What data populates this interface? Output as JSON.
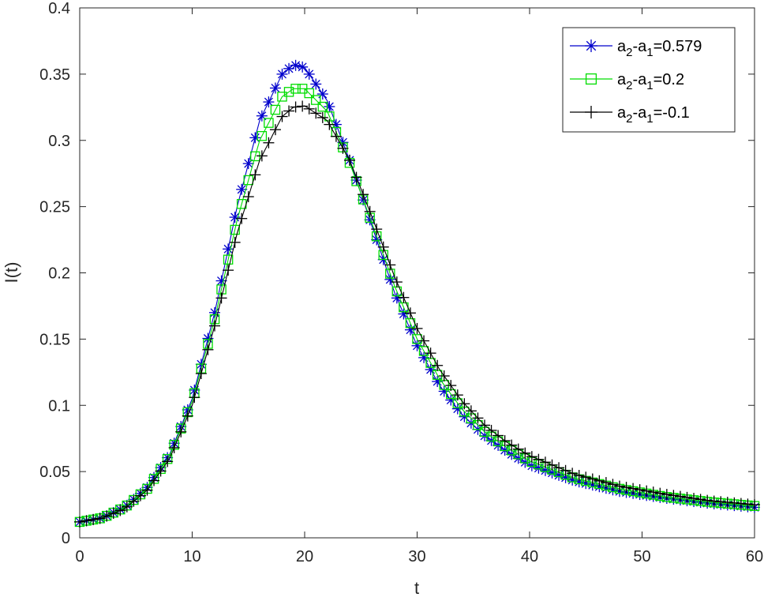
{
  "chart_data": {
    "type": "line",
    "xlabel": "t",
    "ylabel": "I(t)",
    "xlim": [
      0,
      60
    ],
    "ylim": [
      0,
      0.4
    ],
    "xticks": [
      0,
      10,
      20,
      30,
      40,
      50,
      60
    ],
    "xtick_labels": [
      "0",
      "10",
      "20",
      "30",
      "40",
      "50",
      "60"
    ],
    "yticks": [
      0,
      0.05,
      0.1,
      0.15,
      0.2,
      0.25,
      0.3,
      0.35,
      0.4
    ],
    "ytick_labels": [
      "0",
      "0.05",
      "0.1",
      "0.15",
      "0.2",
      "0.25",
      "0.3",
      "0.35",
      "0.4"
    ],
    "grid": false,
    "legend_position": "top-right",
    "series": [
      {
        "name": "a2-a1=0.579",
        "legend": {
          "base": "a",
          "sub1": "2",
          "mid": "-a",
          "sub2": "1",
          "tail": "=0.579"
        },
        "color": "#0000cc",
        "marker": "asterisk",
        "points": [
          [
            0,
            0.012
          ],
          [
            2,
            0.015
          ],
          [
            4,
            0.023
          ],
          [
            6,
            0.038
          ],
          [
            8,
            0.063
          ],
          [
            10,
            0.105
          ],
          [
            12,
            0.17
          ],
          [
            14,
            0.25
          ],
          [
            16,
            0.315
          ],
          [
            18,
            0.35
          ],
          [
            19,
            0.357
          ],
          [
            20,
            0.355
          ],
          [
            22,
            0.33
          ],
          [
            24,
            0.285
          ],
          [
            26,
            0.235
          ],
          [
            28,
            0.185
          ],
          [
            30,
            0.145
          ],
          [
            32,
            0.115
          ],
          [
            34,
            0.093
          ],
          [
            36,
            0.077
          ],
          [
            38,
            0.065
          ],
          [
            40,
            0.055
          ],
          [
            44,
            0.043
          ],
          [
            48,
            0.035
          ],
          [
            52,
            0.03
          ],
          [
            56,
            0.026
          ],
          [
            60,
            0.023
          ]
        ]
      },
      {
        "name": "a2-a1=0.2",
        "legend": {
          "base": "a",
          "sub1": "2",
          "mid": "-a",
          "sub2": "1",
          "tail": "=0.2"
        },
        "color": "#00dd00",
        "marker": "square",
        "points": [
          [
            0,
            0.012
          ],
          [
            2,
            0.015
          ],
          [
            4,
            0.023
          ],
          [
            6,
            0.037
          ],
          [
            8,
            0.062
          ],
          [
            10,
            0.103
          ],
          [
            12,
            0.165
          ],
          [
            14,
            0.24
          ],
          [
            16,
            0.3
          ],
          [
            18,
            0.333
          ],
          [
            19,
            0.339
          ],
          [
            20,
            0.339
          ],
          [
            22,
            0.322
          ],
          [
            24,
            0.283
          ],
          [
            26,
            0.237
          ],
          [
            28,
            0.19
          ],
          [
            30,
            0.15
          ],
          [
            32,
            0.12
          ],
          [
            34,
            0.097
          ],
          [
            36,
            0.08
          ],
          [
            38,
            0.068
          ],
          [
            40,
            0.058
          ],
          [
            44,
            0.045
          ],
          [
            48,
            0.037
          ],
          [
            52,
            0.031
          ],
          [
            56,
            0.027
          ],
          [
            60,
            0.024
          ]
        ]
      },
      {
        "name": "a2-a1=-0.1",
        "legend": {
          "base": "a",
          "sub1": "2",
          "mid": "-a",
          "sub2": "1",
          "tail": "=-0.1"
        },
        "color": "#000000",
        "marker": "plus",
        "points": [
          [
            0,
            0.012
          ],
          [
            2,
            0.015
          ],
          [
            4,
            0.022
          ],
          [
            6,
            0.036
          ],
          [
            8,
            0.06
          ],
          [
            10,
            0.1
          ],
          [
            12,
            0.16
          ],
          [
            14,
            0.23
          ],
          [
            16,
            0.285
          ],
          [
            18,
            0.318
          ],
          [
            19,
            0.325
          ],
          [
            20,
            0.326
          ],
          [
            22,
            0.315
          ],
          [
            24,
            0.285
          ],
          [
            26,
            0.242
          ],
          [
            28,
            0.197
          ],
          [
            30,
            0.158
          ],
          [
            32,
            0.127
          ],
          [
            34,
            0.103
          ],
          [
            36,
            0.085
          ],
          [
            38,
            0.072
          ],
          [
            40,
            0.062
          ],
          [
            44,
            0.048
          ],
          [
            48,
            0.039
          ],
          [
            52,
            0.033
          ],
          [
            56,
            0.028
          ],
          [
            60,
            0.025
          ]
        ]
      }
    ]
  }
}
